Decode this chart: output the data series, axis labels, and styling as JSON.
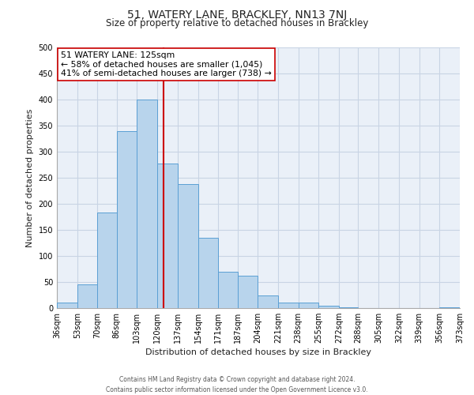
{
  "title": "51, WATERY LANE, BRACKLEY, NN13 7NJ",
  "subtitle": "Size of property relative to detached houses in Brackley",
  "xlabel": "Distribution of detached houses by size in Brackley",
  "ylabel": "Number of detached properties",
  "bin_labels": [
    "36sqm",
    "53sqm",
    "70sqm",
    "86sqm",
    "103sqm",
    "120sqm",
    "137sqm",
    "154sqm",
    "171sqm",
    "187sqm",
    "204sqm",
    "221sqm",
    "238sqm",
    "255sqm",
    "272sqm",
    "288sqm",
    "305sqm",
    "322sqm",
    "339sqm",
    "356sqm",
    "373sqm"
  ],
  "bin_edges": [
    36,
    53,
    70,
    86,
    103,
    120,
    137,
    154,
    171,
    187,
    204,
    221,
    238,
    255,
    272,
    288,
    305,
    322,
    339,
    356,
    373
  ],
  "bar_heights": [
    10,
    46,
    183,
    340,
    400,
    278,
    238,
    135,
    70,
    62,
    25,
    10,
    10,
    5,
    2,
    0,
    0,
    0,
    0,
    2
  ],
  "bar_color": "#b8d4ec",
  "bar_edgecolor": "#5a9fd4",
  "vline_color": "#cc0000",
  "vline_x": 125,
  "ylim": [
    0,
    500
  ],
  "yticks": [
    0,
    50,
    100,
    150,
    200,
    250,
    300,
    350,
    400,
    450,
    500
  ],
  "annotation_line1": "51 WATERY LANE: 125sqm",
  "annotation_line2": "← 58% of detached houses are smaller (1,045)",
  "annotation_line3": "41% of semi-detached houses are larger (738) →",
  "annotation_box_color": "#ffffff",
  "annotation_box_edgecolor": "#cc0000",
  "footer_text": "Contains HM Land Registry data © Crown copyright and database right 2024.\nContains public sector information licensed under the Open Government Licence v3.0.",
  "grid_color": "#c8d4e4",
  "background_color": "#eaf0f8"
}
